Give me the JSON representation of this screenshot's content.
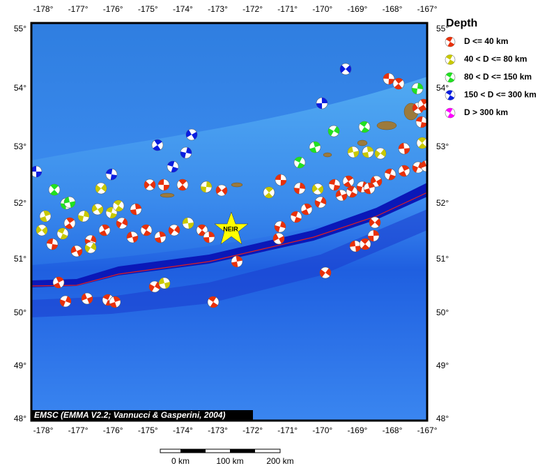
{
  "map": {
    "lon_labels": [
      "-178°",
      "-177°",
      "-176°",
      "-175°",
      "-174°",
      "-173°",
      "-172°",
      "-171°",
      "-170°",
      "-169°",
      "-168°",
      "-167°"
    ],
    "lat_labels": [
      "55°",
      "54°",
      "53°",
      "52°",
      "51°",
      "50°",
      "49°",
      "48°"
    ],
    "epicenter_label": "NEIR",
    "credit": "EMSC (EMMA V2.2; Vannucci & Gasperini, 2004)",
    "scale_labels": [
      "0 km",
      "100 km",
      "200 km"
    ]
  },
  "legend": {
    "title": "Depth",
    "items": [
      "D <= 40 km",
      "40 < D <= 80 km",
      "80 < D <= 150 km",
      "150 < D <= 300 km",
      "D > 300 km"
    ]
  }
}
